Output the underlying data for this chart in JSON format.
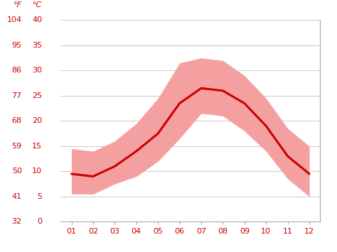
{
  "months": [
    1,
    2,
    3,
    4,
    5,
    6,
    7,
    8,
    9,
    10,
    11,
    12
  ],
  "mean_c": [
    9.5,
    9.0,
    11.0,
    14.0,
    17.5,
    23.5,
    26.5,
    26.0,
    23.5,
    19.0,
    13.0,
    9.5
  ],
  "high_c": [
    14.5,
    14.0,
    16.0,
    19.5,
    24.5,
    31.5,
    32.5,
    32.0,
    29.0,
    24.5,
    18.5,
    15.0
  ],
  "low_c": [
    5.5,
    5.5,
    7.5,
    9.0,
    12.0,
    16.5,
    21.5,
    21.0,
    18.0,
    14.0,
    8.5,
    5.0
  ],
  "line_color": "#cc0000",
  "band_color": "#f5a0a0",
  "bg_color": "#ffffff",
  "grid_color": "#c8c8c8",
  "label_color": "#cc0000",
  "spine_color": "#aaaaaa",
  "ylim_c": [
    0,
    40
  ],
  "yticks_c": [
    0,
    5,
    10,
    15,
    20,
    25,
    30,
    35,
    40
  ],
  "yticks_f": [
    32,
    41,
    50,
    59,
    68,
    77,
    86,
    95,
    104
  ],
  "xlabel_ticks": [
    "01",
    "02",
    "03",
    "04",
    "05",
    "06",
    "07",
    "08",
    "09",
    "10",
    "11",
    "12"
  ],
  "ylabel_left_f": "°F",
  "ylabel_left_c": "°C",
  "tick_fontsize": 8,
  "header_fontsize": 8
}
